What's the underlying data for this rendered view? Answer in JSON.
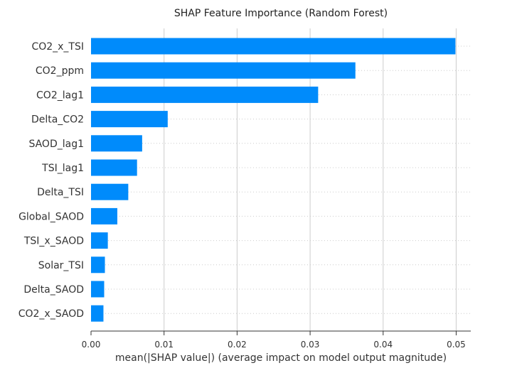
{
  "chart_data": {
    "type": "bar",
    "orientation": "horizontal",
    "title": "SHAP Feature Importance (Random Forest)",
    "xlabel": "mean(|SHAP value|) (average impact on model output magnitude)",
    "ylabel": "",
    "xlim": [
      0,
      0.052
    ],
    "x_ticks": [
      0.0,
      0.01,
      0.02,
      0.03,
      0.04,
      0.05
    ],
    "x_tick_labels": [
      "0.00",
      "0.01",
      "0.02",
      "0.03",
      "0.04",
      "0.05"
    ],
    "grid": "vertical",
    "bar_color": "#008bfb",
    "categories": [
      "CO2_x_TSI",
      "CO2_ppm",
      "CO2_lag1",
      "Delta_CO2",
      "SAOD_lag1",
      "TSI_lag1",
      "Delta_TSI",
      "Global_SAOD",
      "TSI_x_SAOD",
      "Solar_TSI",
      "Delta_SAOD",
      "CO2_x_SAOD"
    ],
    "values": [
      0.0499,
      0.0362,
      0.0311,
      0.0105,
      0.007,
      0.0063,
      0.0051,
      0.0036,
      0.0023,
      0.0019,
      0.0018,
      0.0017
    ]
  }
}
